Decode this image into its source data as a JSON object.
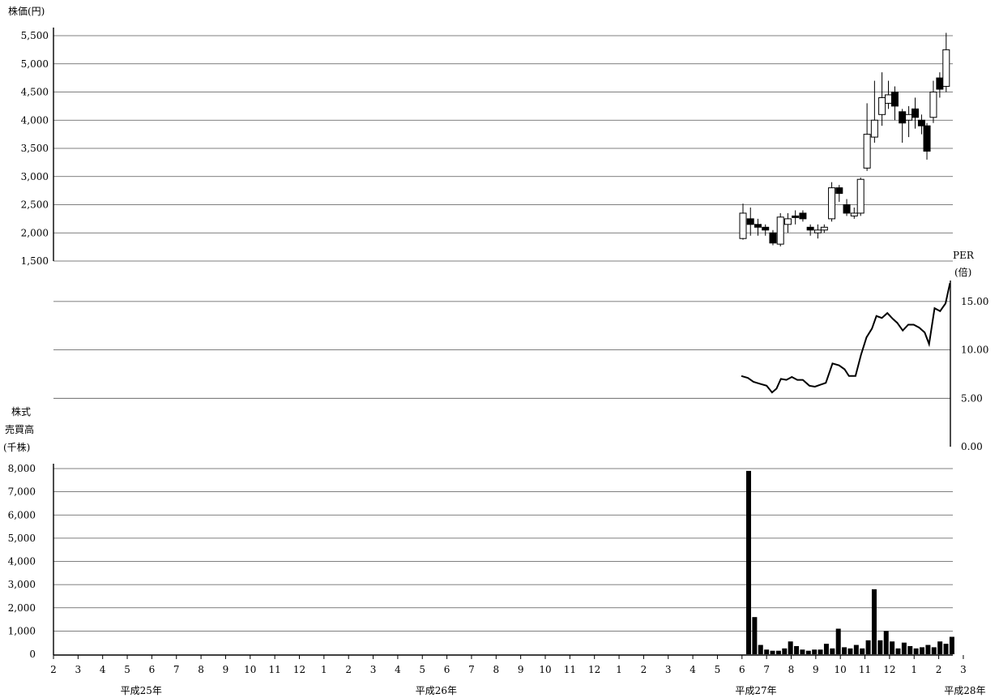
{
  "chart_data": [
    {
      "type": "candlestick",
      "ylabel": "株価(円)",
      "ylim": [
        1500,
        5500
      ],
      "y_ticks": [
        "5,500",
        "5,000",
        "4,500",
        "4,000",
        "3,500",
        "3,000",
        "2,500",
        "2,000",
        "1,500"
      ],
      "candles": [
        {
          "x": 0.0,
          "open": 1900,
          "close": 2350,
          "high": 2520,
          "low": 1880
        },
        {
          "x": 0.7,
          "open": 2250,
          "close": 2150,
          "high": 2450,
          "low": 1950
        },
        {
          "x": 1.4,
          "open": 2150,
          "close": 2100,
          "high": 2250,
          "low": 1950
        },
        {
          "x": 2.1,
          "open": 2100,
          "close": 2050,
          "high": 2150,
          "low": 1950
        },
        {
          "x": 2.8,
          "open": 2000,
          "close": 1820,
          "high": 2050,
          "low": 1780
        },
        {
          "x": 3.5,
          "open": 1800,
          "close": 2280,
          "high": 2350,
          "low": 1760
        },
        {
          "x": 4.2,
          "open": 2150,
          "close": 2250,
          "high": 2350,
          "low": 2000
        },
        {
          "x": 4.9,
          "open": 2300,
          "close": 2280,
          "high": 2400,
          "low": 2150
        },
        {
          "x": 5.6,
          "open": 2350,
          "close": 2250,
          "high": 2400,
          "low": 2200
        },
        {
          "x": 6.3,
          "open": 2100,
          "close": 2050,
          "high": 2150,
          "low": 1950
        },
        {
          "x": 7.0,
          "open": 2000,
          "close": 2050,
          "high": 2150,
          "low": 1900
        },
        {
          "x": 7.6,
          "open": 2050,
          "close": 2100,
          "high": 2150,
          "low": 2000
        },
        {
          "x": 8.3,
          "open": 2250,
          "close": 2800,
          "high": 2900,
          "low": 2200
        },
        {
          "x": 9.0,
          "open": 2800,
          "close": 2700,
          "high": 2850,
          "low": 2550
        },
        {
          "x": 9.7,
          "open": 2500,
          "close": 2350,
          "high": 2600,
          "low": 2300
        },
        {
          "x": 10.4,
          "open": 2300,
          "close": 2350,
          "high": 2450,
          "low": 2250
        },
        {
          "x": 11.0,
          "open": 2350,
          "close": 2950,
          "high": 2980,
          "low": 2300
        },
        {
          "x": 11.6,
          "open": 3150,
          "close": 3750,
          "high": 4300,
          "low": 3100
        },
        {
          "x": 12.3,
          "open": 3700,
          "close": 4000,
          "high": 4700,
          "low": 3600
        },
        {
          "x": 13.0,
          "open": 4100,
          "close": 4400,
          "high": 4850,
          "low": 3900
        },
        {
          "x": 13.6,
          "open": 4300,
          "close": 4450,
          "high": 4700,
          "low": 4200
        },
        {
          "x": 14.2,
          "open": 4500,
          "close": 4250,
          "high": 4600,
          "low": 4000
        },
        {
          "x": 14.9,
          "open": 4150,
          "close": 3950,
          "high": 4200,
          "low": 3600
        },
        {
          "x": 15.5,
          "open": 4000,
          "close": 4100,
          "high": 4250,
          "low": 3700
        },
        {
          "x": 16.1,
          "open": 4200,
          "close": 4050,
          "high": 4400,
          "low": 3850
        },
        {
          "x": 16.7,
          "open": 4000,
          "close": 3900,
          "high": 4100,
          "low": 3750
        },
        {
          "x": 17.2,
          "open": 3900,
          "close": 3450,
          "high": 3950,
          "low": 3300
        },
        {
          "x": 17.8,
          "open": 4050,
          "close": 4500,
          "high": 4700,
          "low": 3950
        },
        {
          "x": 18.4,
          "open": 4750,
          "close": 4550,
          "high": 4850,
          "low": 4400
        },
        {
          "x": 19.0,
          "open": 4600,
          "close": 5250,
          "high": 5550,
          "low": 4500
        }
      ]
    },
    {
      "type": "line",
      "ylabel": "PER",
      "ylabel_unit": "(倍)",
      "ylim": [
        0,
        17
      ],
      "y_ticks": [
        "15.00",
        "10.00",
        "5.00",
        "0.00"
      ],
      "series": [
        {
          "values": [
            {
              "x": 0.0,
              "y": 7.3
            },
            {
              "x": 0.6,
              "y": 7.1
            },
            {
              "x": 1.1,
              "y": 6.7
            },
            {
              "x": 1.7,
              "y": 6.5
            },
            {
              "x": 2.3,
              "y": 6.3
            },
            {
              "x": 2.8,
              "y": 5.6
            },
            {
              "x": 3.2,
              "y": 6.0
            },
            {
              "x": 3.6,
              "y": 7.0
            },
            {
              "x": 4.1,
              "y": 6.9
            },
            {
              "x": 4.6,
              "y": 7.2
            },
            {
              "x": 5.1,
              "y": 6.9
            },
            {
              "x": 5.6,
              "y": 6.9
            },
            {
              "x": 6.2,
              "y": 6.3
            },
            {
              "x": 6.7,
              "y": 6.2
            },
            {
              "x": 7.2,
              "y": 6.4
            },
            {
              "x": 7.7,
              "y": 6.6
            },
            {
              "x": 8.3,
              "y": 8.6
            },
            {
              "x": 8.9,
              "y": 8.4
            },
            {
              "x": 9.4,
              "y": 8.0
            },
            {
              "x": 9.8,
              "y": 7.3
            },
            {
              "x": 10.4,
              "y": 7.3
            },
            {
              "x": 10.9,
              "y": 9.5
            },
            {
              "x": 11.4,
              "y": 11.3
            },
            {
              "x": 11.9,
              "y": 12.2
            },
            {
              "x": 12.3,
              "y": 13.5
            },
            {
              "x": 12.8,
              "y": 13.3
            },
            {
              "x": 13.3,
              "y": 13.8
            },
            {
              "x": 13.8,
              "y": 13.2
            },
            {
              "x": 14.2,
              "y": 12.8
            },
            {
              "x": 14.7,
              "y": 12.0
            },
            {
              "x": 15.2,
              "y": 12.6
            },
            {
              "x": 15.7,
              "y": 12.6
            },
            {
              "x": 16.2,
              "y": 12.3
            },
            {
              "x": 16.7,
              "y": 11.8
            },
            {
              "x": 17.1,
              "y": 10.6
            },
            {
              "x": 17.6,
              "y": 14.3
            },
            {
              "x": 18.1,
              "y": 14.0
            },
            {
              "x": 18.6,
              "y": 14.8
            },
            {
              "x": 19.0,
              "y": 16.9
            }
          ]
        }
      ]
    },
    {
      "type": "bar",
      "ylabel": "株式\n売買高\n(千株)",
      "ylabel_lines": [
        "株式",
        "売買高",
        "(千株)"
      ],
      "ylim": [
        0,
        8000
      ],
      "y_ticks": [
        "8,000",
        "7,000",
        "6,000",
        "5,000",
        "4,000",
        "3,000",
        "2,000",
        "1,000",
        "0"
      ],
      "bars": [
        {
          "x": 0.0,
          "v": 7900
        },
        {
          "x": 0.6,
          "v": 1600
        },
        {
          "x": 1.2,
          "v": 400
        },
        {
          "x": 1.8,
          "v": 200
        },
        {
          "x": 2.4,
          "v": 150
        },
        {
          "x": 3.0,
          "v": 150
        },
        {
          "x": 3.6,
          "v": 250
        },
        {
          "x": 4.2,
          "v": 550
        },
        {
          "x": 4.8,
          "v": 350
        },
        {
          "x": 5.4,
          "v": 200
        },
        {
          "x": 6.0,
          "v": 150
        },
        {
          "x": 6.6,
          "v": 200
        },
        {
          "x": 7.2,
          "v": 200
        },
        {
          "x": 7.8,
          "v": 450
        },
        {
          "x": 8.4,
          "v": 250
        },
        {
          "x": 9.0,
          "v": 1100
        },
        {
          "x": 9.6,
          "v": 300
        },
        {
          "x": 10.2,
          "v": 250
        },
        {
          "x": 10.8,
          "v": 400
        },
        {
          "x": 11.4,
          "v": 250
        },
        {
          "x": 12.0,
          "v": 600
        },
        {
          "x": 12.6,
          "v": 2800
        },
        {
          "x": 13.2,
          "v": 600
        },
        {
          "x": 13.8,
          "v": 1000
        },
        {
          "x": 14.4,
          "v": 550
        },
        {
          "x": 15.0,
          "v": 250
        },
        {
          "x": 15.6,
          "v": 500
        },
        {
          "x": 16.2,
          "v": 350
        },
        {
          "x": 16.8,
          "v": 250
        },
        {
          "x": 17.4,
          "v": 300
        },
        {
          "x": 18.0,
          "v": 400
        },
        {
          "x": 18.6,
          "v": 300
        },
        {
          "x": 19.2,
          "v": 550
        },
        {
          "x": 19.8,
          "v": 450
        },
        {
          "x": 20.4,
          "v": 750
        }
      ]
    }
  ],
  "x_axis": {
    "months": [
      "2",
      "3",
      "4",
      "5",
      "6",
      "7",
      "8",
      "9",
      "10",
      "11",
      "12",
      "1",
      "2",
      "3",
      "4",
      "5",
      "6",
      "7",
      "8",
      "9",
      "10",
      "11",
      "12",
      "1",
      "2",
      "3",
      "4",
      "5",
      "6",
      "7",
      "8",
      "9",
      "10",
      "11",
      "12",
      "1",
      "2",
      "3"
    ],
    "years": [
      {
        "label": "平成25年",
        "month_index": 3.5
      },
      {
        "label": "平成26年",
        "month_index": 15.5
      },
      {
        "label": "平成27年",
        "month_index": 28.5
      },
      {
        "label": "平成28年",
        "month_index": 37
      }
    ]
  }
}
